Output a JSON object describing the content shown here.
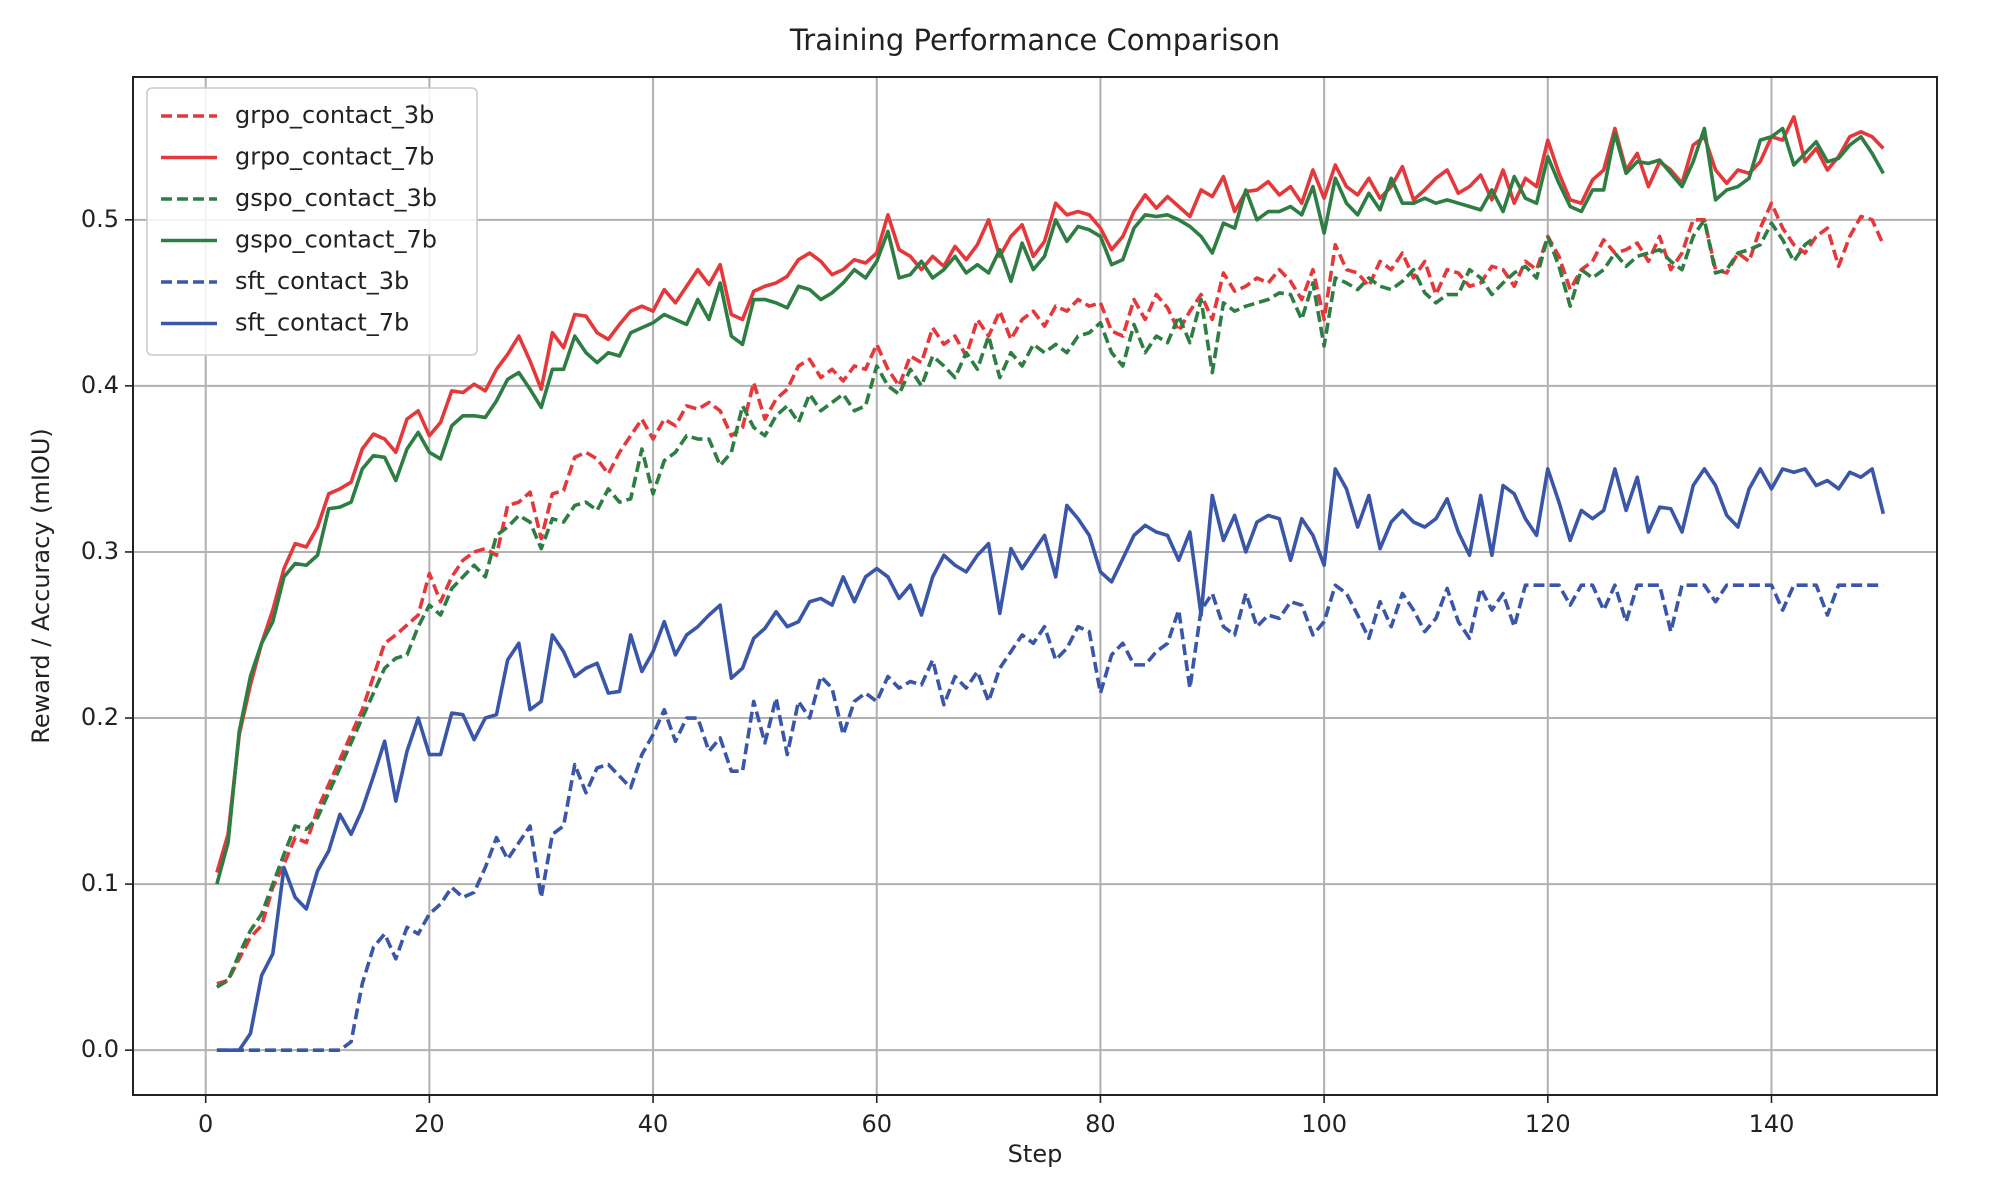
{
  "chart_data": {
    "type": "line",
    "title": "Training Performance Comparison",
    "x_label": "Step",
    "y_label": "Reward / Accuracy (mIOU)",
    "x": [
      1,
      2,
      3,
      4,
      5,
      6,
      7,
      8,
      9,
      10,
      11,
      12,
      13,
      14,
      15,
      16,
      17,
      18,
      19,
      20,
      21,
      22,
      23,
      24,
      25,
      26,
      27,
      28,
      29,
      30,
      31,
      32,
      33,
      34,
      35,
      36,
      37,
      38,
      39,
      40,
      41,
      42,
      43,
      44,
      45,
      46,
      47,
      48,
      49,
      50,
      51,
      52,
      53,
      54,
      55,
      56,
      57,
      58,
      59,
      60,
      61,
      62,
      63,
      64,
      65,
      66,
      67,
      68,
      69,
      70,
      71,
      72,
      73,
      74,
      75,
      76,
      77,
      78,
      79,
      80,
      81,
      82,
      83,
      84,
      85,
      86,
      87,
      88,
      89,
      90,
      91,
      92,
      93,
      94,
      95,
      96,
      97,
      98,
      99,
      100,
      101,
      102,
      103,
      104,
      105,
      106,
      107,
      108,
      109,
      110,
      111,
      112,
      113,
      114,
      115,
      116,
      117,
      118,
      119,
      120,
      121,
      122,
      123,
      124,
      125,
      126,
      127,
      128,
      129,
      130,
      131,
      132,
      133,
      134,
      135,
      136,
      137,
      138,
      139,
      140,
      141,
      142,
      143,
      144,
      145,
      146,
      147,
      148,
      149,
      150
    ],
    "series": [
      {
        "name": "grpo_contact_3b",
        "color": "#e5383b",
        "linestyle": "dashed",
        "values": [
          0.04,
          0.042,
          0.055,
          0.068,
          0.075,
          0.098,
          0.112,
          0.128,
          0.125,
          0.145,
          0.16,
          0.175,
          0.19,
          0.205,
          0.225,
          0.245,
          0.25,
          0.256,
          0.262,
          0.287,
          0.27,
          0.285,
          0.295,
          0.3,
          0.302,
          0.298,
          0.328,
          0.33,
          0.336,
          0.308,
          0.335,
          0.337,
          0.357,
          0.36,
          0.356,
          0.347,
          0.36,
          0.37,
          0.38,
          0.368,
          0.38,
          0.376,
          0.388,
          0.386,
          0.39,
          0.385,
          0.37,
          0.375,
          0.402,
          0.38,
          0.392,
          0.398,
          0.412,
          0.416,
          0.405,
          0.41,
          0.403,
          0.412,
          0.41,
          0.425,
          0.41,
          0.4,
          0.418,
          0.414,
          0.435,
          0.425,
          0.43,
          0.418,
          0.44,
          0.43,
          0.445,
          0.428,
          0.44,
          0.445,
          0.436,
          0.448,
          0.445,
          0.452,
          0.448,
          0.45,
          0.433,
          0.43,
          0.452,
          0.44,
          0.455,
          0.447,
          0.433,
          0.445,
          0.455,
          0.44,
          0.468,
          0.457,
          0.46,
          0.465,
          0.462,
          0.47,
          0.463,
          0.452,
          0.47,
          0.44,
          0.485,
          0.47,
          0.468,
          0.46,
          0.475,
          0.47,
          0.48,
          0.465,
          0.475,
          0.455,
          0.47,
          0.468,
          0.46,
          0.462,
          0.472,
          0.47,
          0.46,
          0.475,
          0.47,
          0.49,
          0.478,
          0.458,
          0.47,
          0.475,
          0.488,
          0.48,
          0.482,
          0.486,
          0.475,
          0.49,
          0.47,
          0.48,
          0.5,
          0.5,
          0.47,
          0.468,
          0.48,
          0.475,
          0.495,
          0.51,
          0.495,
          0.485,
          0.48,
          0.49,
          0.495,
          0.472,
          0.49,
          0.502,
          0.5,
          0.485
        ]
      },
      {
        "name": "grpo_contact_7b",
        "color": "#e5383b",
        "linestyle": "solid",
        "values": [
          0.107,
          0.13,
          0.19,
          0.22,
          0.245,
          0.265,
          0.29,
          0.305,
          0.303,
          0.315,
          0.335,
          0.338,
          0.342,
          0.362,
          0.371,
          0.368,
          0.36,
          0.38,
          0.385,
          0.37,
          0.378,
          0.397,
          0.396,
          0.401,
          0.397,
          0.41,
          0.419,
          0.43,
          0.415,
          0.398,
          0.432,
          0.423,
          0.443,
          0.442,
          0.432,
          0.428,
          0.437,
          0.445,
          0.448,
          0.445,
          0.458,
          0.45,
          0.46,
          0.47,
          0.461,
          0.473,
          0.443,
          0.44,
          0.457,
          0.46,
          0.462,
          0.466,
          0.476,
          0.48,
          0.475,
          0.467,
          0.47,
          0.476,
          0.474,
          0.48,
          0.503,
          0.482,
          0.478,
          0.47,
          0.478,
          0.472,
          0.484,
          0.476,
          0.485,
          0.5,
          0.478,
          0.49,
          0.497,
          0.478,
          0.487,
          0.51,
          0.503,
          0.505,
          0.503,
          0.495,
          0.482,
          0.49,
          0.505,
          0.515,
          0.507,
          0.514,
          0.508,
          0.502,
          0.518,
          0.514,
          0.526,
          0.505,
          0.517,
          0.518,
          0.523,
          0.515,
          0.52,
          0.51,
          0.53,
          0.513,
          0.533,
          0.52,
          0.515,
          0.525,
          0.513,
          0.52,
          0.532,
          0.512,
          0.518,
          0.525,
          0.53,
          0.516,
          0.52,
          0.527,
          0.512,
          0.53,
          0.51,
          0.525,
          0.52,
          0.548,
          0.528,
          0.512,
          0.51,
          0.524,
          0.53,
          0.555,
          0.53,
          0.54,
          0.52,
          0.535,
          0.53,
          0.522,
          0.545,
          0.55,
          0.53,
          0.522,
          0.53,
          0.528,
          0.535,
          0.55,
          0.548,
          0.562,
          0.535,
          0.543,
          0.53,
          0.538,
          0.55,
          0.553,
          0.55,
          0.543
        ]
      },
      {
        "name": "gspo_contact_3b",
        "color": "#2e7d43",
        "linestyle": "dashed",
        "values": [
          0.038,
          0.042,
          0.058,
          0.072,
          0.082,
          0.1,
          0.118,
          0.135,
          0.133,
          0.14,
          0.155,
          0.17,
          0.185,
          0.2,
          0.215,
          0.23,
          0.236,
          0.238,
          0.255,
          0.268,
          0.262,
          0.278,
          0.285,
          0.292,
          0.285,
          0.31,
          0.315,
          0.322,
          0.318,
          0.302,
          0.32,
          0.318,
          0.328,
          0.33,
          0.325,
          0.338,
          0.33,
          0.332,
          0.362,
          0.335,
          0.355,
          0.36,
          0.37,
          0.368,
          0.368,
          0.352,
          0.36,
          0.388,
          0.375,
          0.37,
          0.382,
          0.388,
          0.378,
          0.395,
          0.385,
          0.39,
          0.395,
          0.385,
          0.388,
          0.412,
          0.4,
          0.395,
          0.41,
          0.4,
          0.418,
          0.412,
          0.405,
          0.42,
          0.41,
          0.43,
          0.405,
          0.42,
          0.412,
          0.425,
          0.42,
          0.425,
          0.42,
          0.43,
          0.432,
          0.438,
          0.42,
          0.412,
          0.437,
          0.42,
          0.43,
          0.426,
          0.442,
          0.426,
          0.452,
          0.408,
          0.45,
          0.445,
          0.448,
          0.45,
          0.452,
          0.456,
          0.455,
          0.44,
          0.462,
          0.424,
          0.465,
          0.462,
          0.458,
          0.465,
          0.46,
          0.458,
          0.463,
          0.47,
          0.456,
          0.45,
          0.455,
          0.455,
          0.47,
          0.465,
          0.455,
          0.462,
          0.468,
          0.472,
          0.465,
          0.49,
          0.472,
          0.448,
          0.47,
          0.465,
          0.47,
          0.48,
          0.472,
          0.478,
          0.48,
          0.482,
          0.475,
          0.47,
          0.49,
          0.5,
          0.468,
          0.47,
          0.48,
          0.482,
          0.485,
          0.498,
          0.488,
          0.475,
          0.485,
          0.49,
          null,
          null,
          null,
          null,
          null,
          null
        ]
      },
      {
        "name": "gspo_contact_7b",
        "color": "#2e7d43",
        "linestyle": "solid",
        "values": [
          0.1,
          0.125,
          0.192,
          0.225,
          0.245,
          0.258,
          0.285,
          0.293,
          0.292,
          0.298,
          0.326,
          0.327,
          0.33,
          0.35,
          0.358,
          0.357,
          0.343,
          0.362,
          0.372,
          0.36,
          0.356,
          0.376,
          0.382,
          0.382,
          0.381,
          0.391,
          0.404,
          0.408,
          0.398,
          0.387,
          0.41,
          0.41,
          0.43,
          0.42,
          0.414,
          0.42,
          0.418,
          0.432,
          0.435,
          0.438,
          0.443,
          0.44,
          0.437,
          0.452,
          0.44,
          0.462,
          0.43,
          0.425,
          0.452,
          0.452,
          0.45,
          0.447,
          0.46,
          0.458,
          0.452,
          0.456,
          0.462,
          0.47,
          0.465,
          0.475,
          0.493,
          0.465,
          0.467,
          0.475,
          0.465,
          0.47,
          0.478,
          0.468,
          0.473,
          0.468,
          0.482,
          0.463,
          0.486,
          0.47,
          0.478,
          0.5,
          0.487,
          0.496,
          0.494,
          0.49,
          0.473,
          0.476,
          0.495,
          0.503,
          0.502,
          0.503,
          0.5,
          0.496,
          0.49,
          0.48,
          0.498,
          0.495,
          0.518,
          0.5,
          0.505,
          0.505,
          0.508,
          0.503,
          0.52,
          0.492,
          0.525,
          0.51,
          0.503,
          0.516,
          0.506,
          0.525,
          0.51,
          0.51,
          0.513,
          0.51,
          0.512,
          0.51,
          0.508,
          0.506,
          0.518,
          0.505,
          0.526,
          0.513,
          0.51,
          0.538,
          0.522,
          0.508,
          0.505,
          0.518,
          0.518,
          0.552,
          0.528,
          0.535,
          0.534,
          0.536,
          0.528,
          0.52,
          0.535,
          0.555,
          0.512,
          0.518,
          0.52,
          0.525,
          0.548,
          0.55,
          0.555,
          0.533,
          0.54,
          0.547,
          0.535,
          0.537,
          0.545,
          0.55,
          0.54,
          0.528
        ]
      },
      {
        "name": "sft_contact_3b",
        "color": "#3a56a8",
        "linestyle": "dashed",
        "values": [
          0,
          0,
          0,
          0,
          0,
          0,
          0,
          0,
          0,
          0,
          0,
          0,
          0.005,
          0.04,
          0.062,
          0.07,
          0.055,
          0.074,
          0.07,
          0.082,
          0.088,
          0.098,
          0.092,
          0.095,
          0.11,
          0.128,
          0.115,
          0.125,
          0.135,
          0.092,
          0.13,
          0.135,
          0.172,
          0.155,
          0.17,
          0.172,
          0.165,
          0.158,
          0.178,
          0.19,
          0.205,
          0.186,
          0.2,
          0.2,
          0.18,
          0.188,
          0.168,
          0.168,
          0.21,
          0.185,
          0.212,
          0.178,
          0.21,
          0.2,
          0.225,
          0.218,
          0.19,
          0.21,
          0.215,
          0.21,
          0.225,
          0.218,
          0.222,
          0.22,
          0.235,
          0.208,
          0.225,
          0.218,
          0.228,
          0.21,
          0.23,
          0.24,
          0.25,
          0.245,
          0.255,
          0.235,
          0.242,
          0.255,
          0.252,
          0.215,
          0.238,
          0.245,
          0.232,
          0.232,
          0.24,
          0.245,
          0.265,
          0.218,
          0.265,
          0.275,
          0.255,
          0.25,
          0.275,
          0.255,
          0.262,
          0.26,
          0.27,
          0.268,
          0.25,
          0.258,
          0.28,
          0.275,
          0.262,
          0.248,
          0.27,
          0.255,
          0.275,
          0.265,
          0.252,
          0.26,
          0.278,
          0.258,
          0.248,
          0.278,
          0.265,
          0.275,
          0.255,
          0.28,
          0.28,
          0.28,
          0.28,
          0.268,
          0.28,
          0.28,
          0.265,
          0.28,
          0.258,
          0.28,
          0.28,
          0.28,
          0.252,
          0.28,
          0.28,
          0.28,
          0.27,
          0.28,
          0.28,
          0.28,
          0.28,
          0.28,
          0.265,
          0.28,
          0.28,
          0.28,
          0.262,
          0.28,
          0.28,
          0.28,
          0.28,
          0.28
        ]
      },
      {
        "name": "sft_contact_7b",
        "color": "#3a56a8",
        "linestyle": "solid",
        "values": [
          0,
          0,
          0,
          0.01,
          0.045,
          0.058,
          0.11,
          0.092,
          0.085,
          0.108,
          0.12,
          0.142,
          0.13,
          0.145,
          0.165,
          0.186,
          0.15,
          0.18,
          0.2,
          0.178,
          0.178,
          0.203,
          0.202,
          0.187,
          0.2,
          0.202,
          0.235,
          0.245,
          0.205,
          0.21,
          0.25,
          0.24,
          0.225,
          0.23,
          0.233,
          0.215,
          0.216,
          0.25,
          0.228,
          0.24,
          0.258,
          0.238,
          0.25,
          0.255,
          0.262,
          0.268,
          0.224,
          0.23,
          0.248,
          0.254,
          0.264,
          0.255,
          0.258,
          0.27,
          0.272,
          0.268,
          0.285,
          0.27,
          0.285,
          0.29,
          0.285,
          0.272,
          0.28,
          0.262,
          0.285,
          0.298,
          0.292,
          0.288,
          0.298,
          0.305,
          0.263,
          0.302,
          0.29,
          0.3,
          0.31,
          0.285,
          0.328,
          0.32,
          0.31,
          0.288,
          0.282,
          0.296,
          0.31,
          0.316,
          0.312,
          0.31,
          0.295,
          0.312,
          0.262,
          0.334,
          0.307,
          0.322,
          0.3,
          0.318,
          0.322,
          0.32,
          0.295,
          0.32,
          0.31,
          0.292,
          0.35,
          0.338,
          0.315,
          0.334,
          0.302,
          0.318,
          0.325,
          0.318,
          0.315,
          0.32,
          0.332,
          0.312,
          0.298,
          0.334,
          0.298,
          0.34,
          0.335,
          0.32,
          0.31,
          0.35,
          0.33,
          0.307,
          0.325,
          0.32,
          0.325,
          0.35,
          0.325,
          0.345,
          0.312,
          0.327,
          0.326,
          0.312,
          0.34,
          0.35,
          0.34,
          0.322,
          0.315,
          0.338,
          0.35,
          0.338,
          0.35,
          0.348,
          0.35,
          0.34,
          0.343,
          0.338,
          0.348,
          0.345,
          0.35,
          0.323
        ]
      }
    ],
    "xlim": [
      -6.5,
      154.8
    ],
    "xticks": [
      0,
      20,
      40,
      60,
      80,
      100,
      120,
      140
    ],
    "ylim": [
      -0.027,
      0.586
    ],
    "yticks": [
      {
        "value": 0,
        "label": "0.0"
      },
      0.1,
      0.2,
      0.3,
      0.4,
      0.5
    ],
    "grid": true,
    "legend": "upper left"
  }
}
